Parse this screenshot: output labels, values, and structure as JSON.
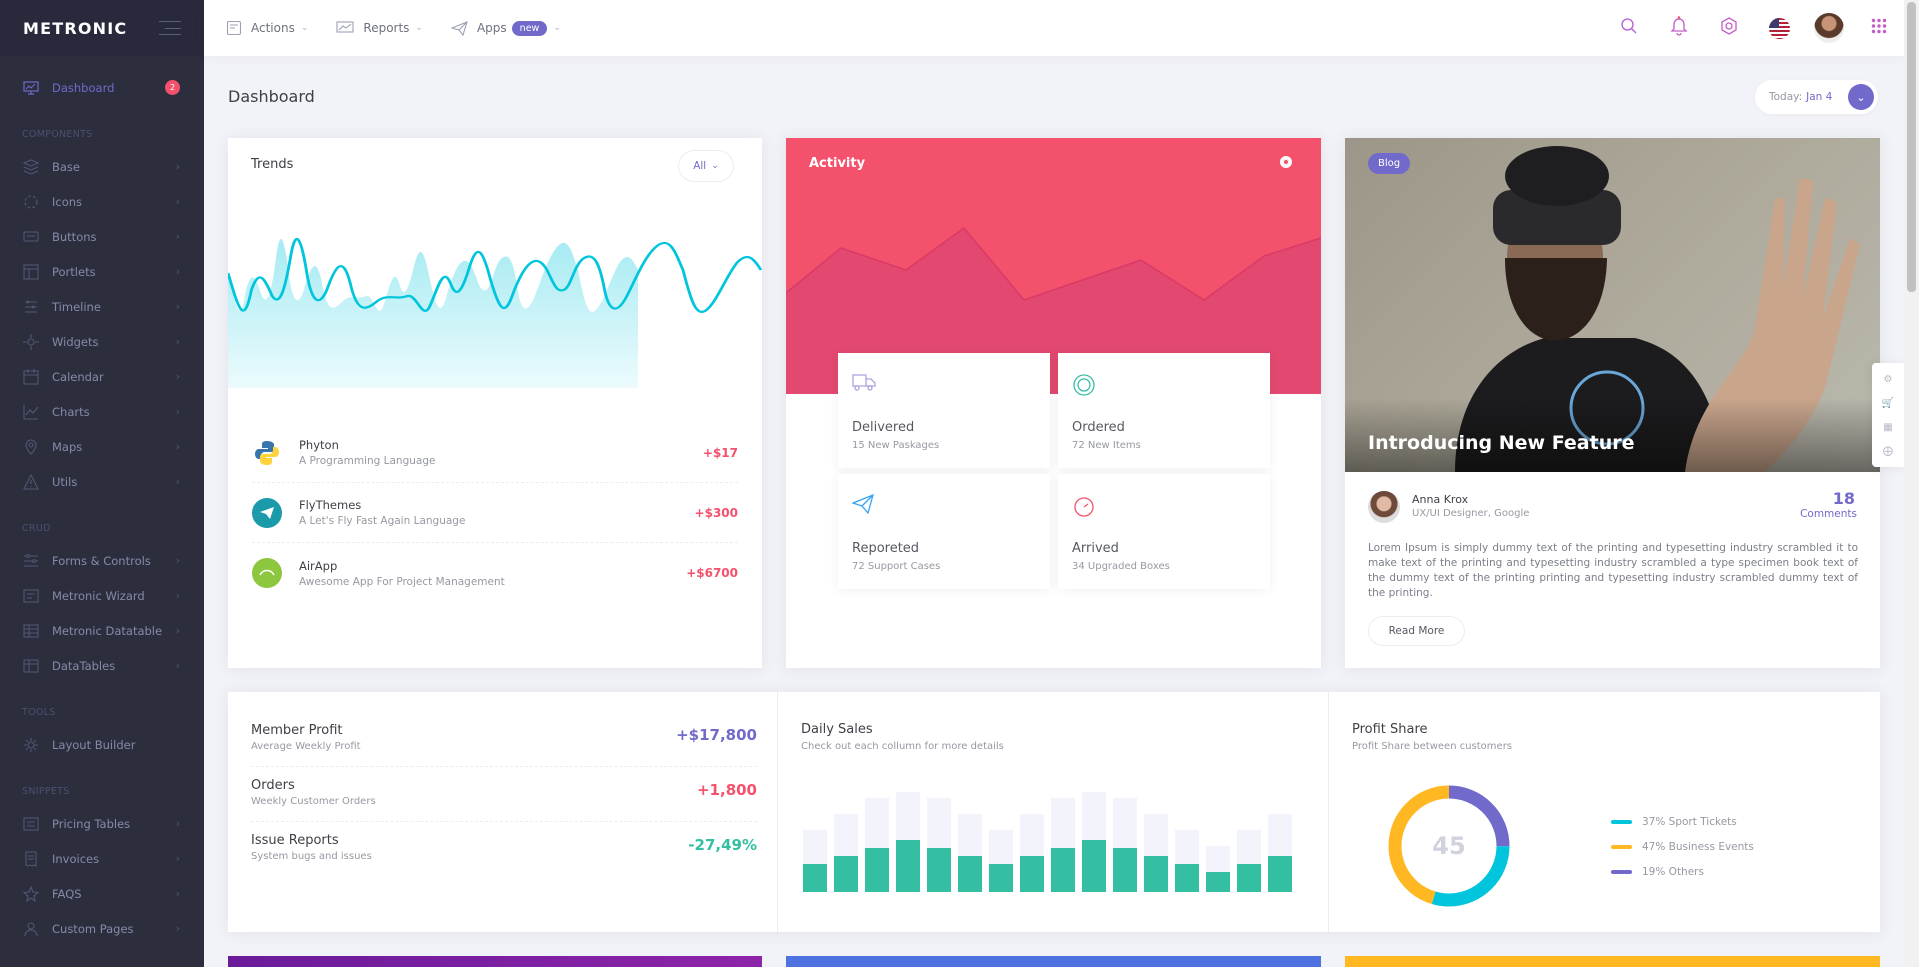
{
  "brand": {
    "name": "METRONIC"
  },
  "sidebar": {
    "dashboard": {
      "label": "Dashboard",
      "badge": "2"
    },
    "sections": {
      "components": "COMPONENTS",
      "crud": "CRUD",
      "tools": "TOOLS",
      "snippets": "SNIPPETS"
    },
    "components": [
      {
        "label": "Base",
        "icon": "base-icon"
      },
      {
        "label": "Icons",
        "icon": "icons-icon"
      },
      {
        "label": "Buttons",
        "icon": "buttons-icon"
      },
      {
        "label": "Portlets",
        "icon": "portlets-icon"
      },
      {
        "label": "Timeline",
        "icon": "timeline-icon"
      },
      {
        "label": "Widgets",
        "icon": "widgets-icon"
      },
      {
        "label": "Calendar",
        "icon": "calendar-icon"
      },
      {
        "label": "Charts",
        "icon": "charts-icon"
      },
      {
        "label": "Maps",
        "icon": "maps-icon"
      },
      {
        "label": "Utils",
        "icon": "utils-icon"
      }
    ],
    "crud": [
      {
        "label": "Forms & Controls",
        "icon": "forms-icon"
      },
      {
        "label": "Metronic Wizard",
        "icon": "wizard-icon"
      },
      {
        "label": "Metronic Datatable",
        "icon": "datatable-icon"
      },
      {
        "label": "DataTables",
        "icon": "datatables-icon"
      }
    ],
    "tools": [
      {
        "label": "Layout Builder",
        "icon": "layout-builder-icon"
      }
    ],
    "snippets": [
      {
        "label": "Pricing Tables",
        "icon": "pricing-icon"
      },
      {
        "label": "Invoices",
        "icon": "invoices-icon"
      },
      {
        "label": "FAQS",
        "icon": "faq-icon"
      },
      {
        "label": "Custom Pages",
        "icon": "custom-pages-icon"
      }
    ]
  },
  "header": {
    "nav": [
      {
        "label": "Actions"
      },
      {
        "label": "Reports"
      },
      {
        "label": "Apps",
        "badge": "new"
      }
    ]
  },
  "page": {
    "title": "Dashboard",
    "date_label": "Today:",
    "date_value": "Jan 4"
  },
  "trends": {
    "title": "Trends",
    "filter": "All",
    "items": [
      {
        "name": "Phyton",
        "desc": "A Programming Language",
        "value": "+$17"
      },
      {
        "name": "FlyThemes",
        "desc": "A Let's Fly Fast Again Language",
        "value": "+$300"
      },
      {
        "name": "AirApp",
        "desc": "Awesome App For Project Management",
        "value": "+$6700"
      }
    ]
  },
  "activity": {
    "title": "Activity",
    "tiles": [
      {
        "title": "Delivered",
        "sub": "15 New Paskages"
      },
      {
        "title": "Ordered",
        "sub": "72 New Items"
      },
      {
        "title": "Reporeted",
        "sub": "72 Support Cases"
      },
      {
        "title": "Arrived",
        "sub": "34 Upgraded Boxes"
      }
    ]
  },
  "blog": {
    "tag": "Blog",
    "headline": "Introducing New Feature",
    "author_name": "Anna Krox",
    "author_role": "UX/UI Designer, Google",
    "comments_count": "18",
    "comments_label": "Comments",
    "text": "Lorem Ipsum is simply dummy text of the printing and typesetting industry scrambled it to make text of the printing and typesetting industry scrambled a type specimen book text of the dummy text of the printing printing and typesetting industry scrambled dummy text of the printing.",
    "read_more": "Read More"
  },
  "member_profit": [
    {
      "title": "Member Profit",
      "sub": "Average Weekly Profit",
      "value": "+$17,800",
      "color": "#716aca"
    },
    {
      "title": "Orders",
      "sub": "Weekly Customer Orders",
      "value": "+1,800",
      "color": "#f4516c"
    },
    {
      "title": "Issue Reports",
      "sub": "System bugs and issues",
      "value": "-27,49%",
      "color": "#34bfa3"
    }
  ],
  "daily_sales": {
    "title": "Daily Sales",
    "sub": "Check out each collumn for more details"
  },
  "profit_share": {
    "title": "Profit Share",
    "sub": "Profit Share between customers",
    "center": "45",
    "legend": [
      {
        "label": "37% Sport Tickets",
        "color": "#00c5dc"
      },
      {
        "label": "47% Business Events",
        "color": "#ffb822"
      },
      {
        "label": "19% Others",
        "color": "#716aca"
      }
    ]
  },
  "colors": {
    "accent": "#716aca",
    "danger": "#f4516c",
    "success": "#34bfa3",
    "info": "#00c5dc",
    "warning": "#ffb822"
  }
}
